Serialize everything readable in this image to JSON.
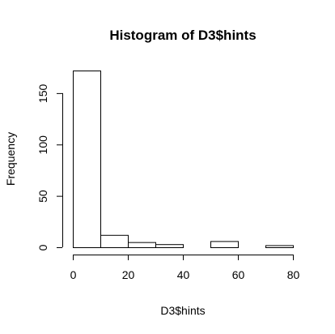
{
  "chart_data": {
    "type": "bar",
    "title": "Histogram of D3$hints",
    "xlabel": "D3$hints",
    "ylabel": "Frequency",
    "bins": [
      {
        "from": 0,
        "to": 10,
        "count": 172
      },
      {
        "from": 10,
        "to": 20,
        "count": 12
      },
      {
        "from": 20,
        "to": 30,
        "count": 5
      },
      {
        "from": 30,
        "to": 40,
        "count": 3
      },
      {
        "from": 40,
        "to": 50,
        "count": 0
      },
      {
        "from": 50,
        "to": 60,
        "count": 6
      },
      {
        "from": 60,
        "to": 70,
        "count": 0
      },
      {
        "from": 70,
        "to": 80,
        "count": 2
      }
    ],
    "xlim": [
      0,
      80
    ],
    "ylim": [
      0,
      172
    ],
    "x_ticks": [
      0,
      20,
      40,
      60,
      80
    ],
    "y_ticks": [
      0,
      50,
      100,
      150
    ],
    "grid": false,
    "bar_fill": "#ffffff",
    "bar_stroke": "#000000"
  }
}
